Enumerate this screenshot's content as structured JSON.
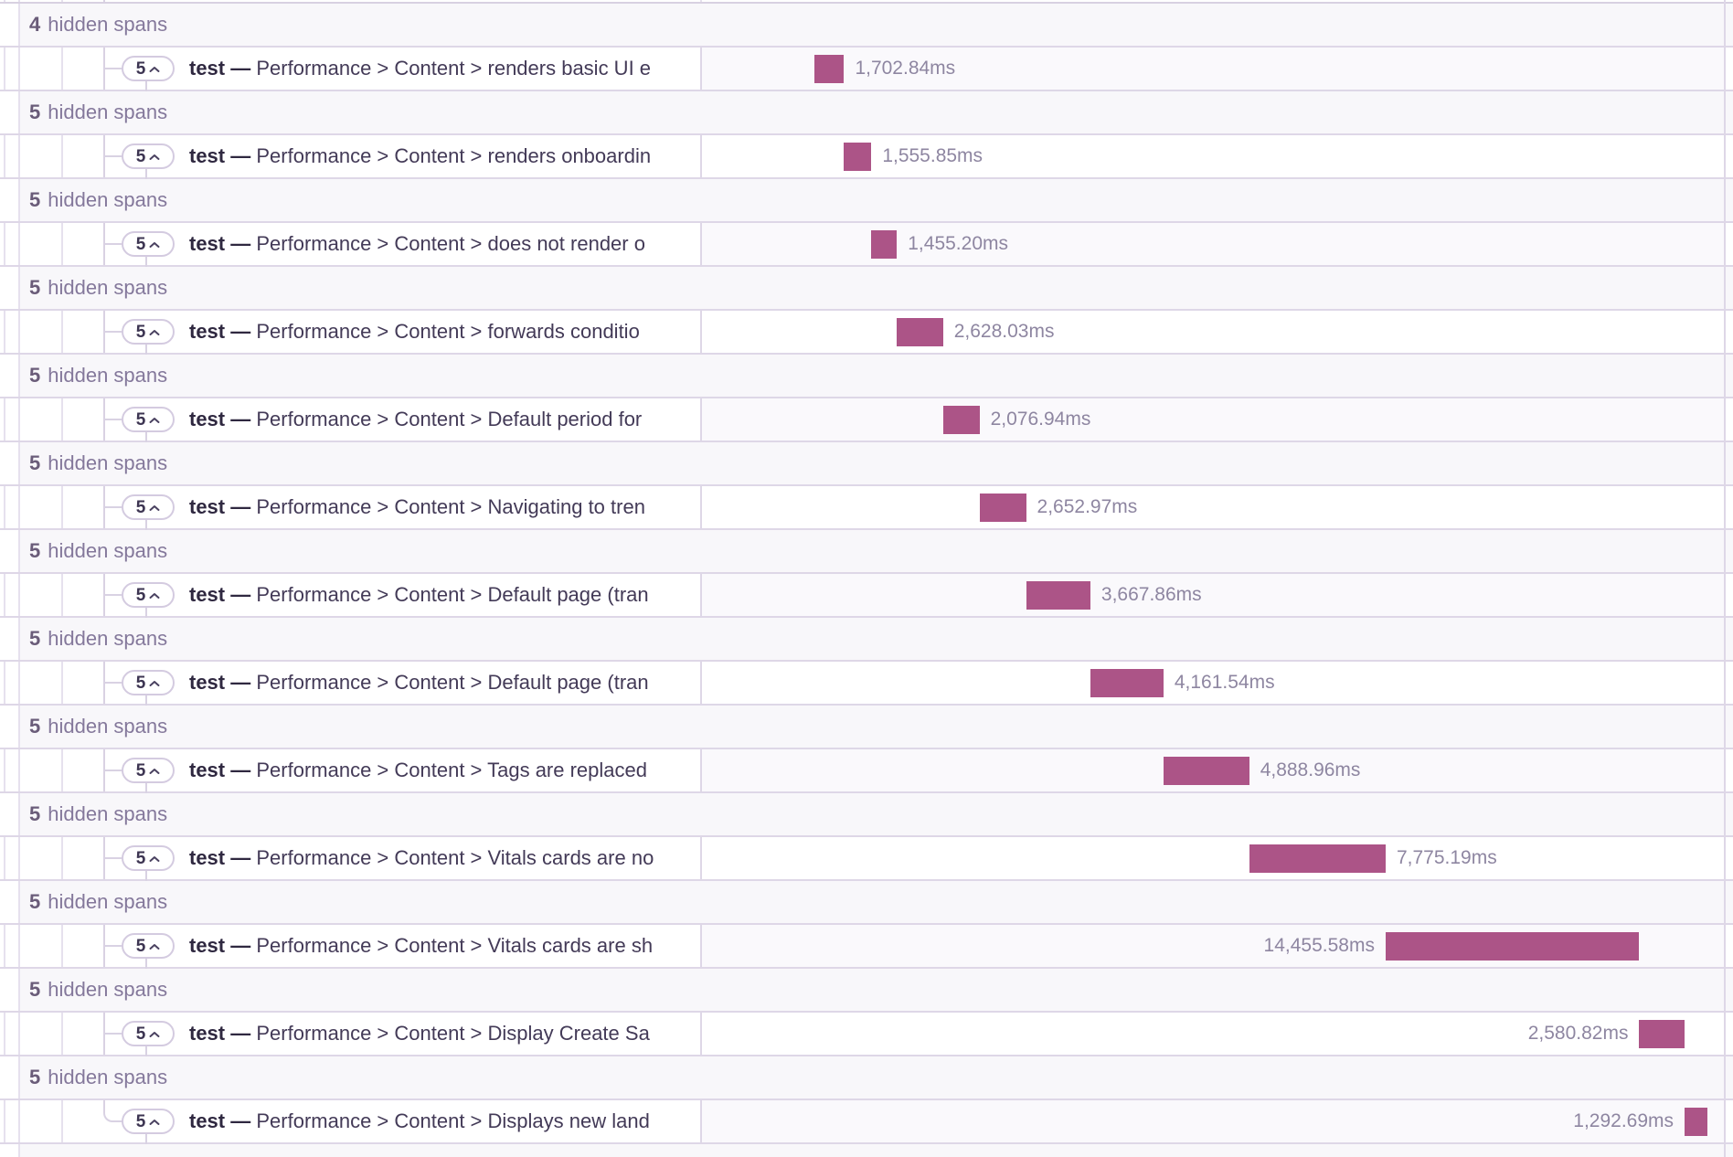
{
  "colors": {
    "bar": "#ac5487",
    "row_border": "#ded7e7",
    "tree_line": "#d9d2e3",
    "hidden_row_bg": "#f8f7fa",
    "alt_waterfall_bg": "#faf9fc"
  },
  "labels": {
    "hidden_suffix": "hidden spans"
  },
  "trace": {
    "timeline": {
      "origin_ms": 6290,
      "total_ms": 58130
    },
    "rows": [
      {
        "type": "hidden",
        "count": "4"
      },
      {
        "type": "span",
        "badge_count": "5",
        "op": "test",
        "separator": "—",
        "description": "Performance > Content > renders basic UI e",
        "duration_label": "1,702.84ms",
        "duration_ms": 1702.84
      },
      {
        "type": "hidden",
        "count": "5"
      },
      {
        "type": "span",
        "badge_count": "5",
        "op": "test",
        "separator": "—",
        "description": "Performance > Content > renders onboardin",
        "duration_label": "1,555.85ms",
        "duration_ms": 1555.85
      },
      {
        "type": "hidden",
        "count": "5"
      },
      {
        "type": "span",
        "badge_count": "5",
        "op": "test",
        "separator": "—",
        "description": "Performance > Content > does not render o",
        "duration_label": "1,455.20ms",
        "duration_ms": 1455.2
      },
      {
        "type": "hidden",
        "count": "5"
      },
      {
        "type": "span",
        "badge_count": "5",
        "op": "test",
        "separator": "—",
        "description": "Performance > Content > forwards conditio",
        "duration_label": "2,628.03ms",
        "duration_ms": 2628.03
      },
      {
        "type": "hidden",
        "count": "5"
      },
      {
        "type": "span",
        "badge_count": "5",
        "op": "test",
        "separator": "—",
        "description": "Performance > Content > Default period for",
        "duration_label": "2,076.94ms",
        "duration_ms": 2076.94
      },
      {
        "type": "hidden",
        "count": "5"
      },
      {
        "type": "span",
        "badge_count": "5",
        "op": "test",
        "separator": "—",
        "description": "Performance > Content > Navigating to tren",
        "duration_label": "2,652.97ms",
        "duration_ms": 2652.97
      },
      {
        "type": "hidden",
        "count": "5"
      },
      {
        "type": "span",
        "badge_count": "5",
        "op": "test",
        "separator": "—",
        "description": "Performance > Content > Default page (tran",
        "duration_label": "3,667.86ms",
        "duration_ms": 3667.86
      },
      {
        "type": "hidden",
        "count": "5"
      },
      {
        "type": "span",
        "badge_count": "5",
        "op": "test",
        "separator": "—",
        "description": "Performance > Content > Default page (tran",
        "duration_label": "4,161.54ms",
        "duration_ms": 4161.54
      },
      {
        "type": "hidden",
        "count": "5"
      },
      {
        "type": "span",
        "badge_count": "5",
        "op": "test",
        "separator": "—",
        "description": "Performance > Content > Tags are replaced",
        "duration_label": "4,888.96ms",
        "duration_ms": 4888.96
      },
      {
        "type": "hidden",
        "count": "5"
      },
      {
        "type": "span",
        "badge_count": "5",
        "op": "test",
        "separator": "—",
        "description": "Performance > Content > Vitals cards are no",
        "duration_label": "7,775.19ms",
        "duration_ms": 7775.19
      },
      {
        "type": "hidden",
        "count": "5"
      },
      {
        "type": "span",
        "badge_count": "5",
        "op": "test",
        "separator": "—",
        "description": "Performance > Content > Vitals cards are sh",
        "duration_label": "14,455.58ms",
        "duration_ms": 14455.58
      },
      {
        "type": "hidden",
        "count": "5"
      },
      {
        "type": "span",
        "badge_count": "5",
        "op": "test",
        "separator": "—",
        "description": "Performance > Content > Display Create Sa",
        "duration_label": "2,580.82ms",
        "duration_ms": 2580.82
      },
      {
        "type": "hidden",
        "count": "5"
      },
      {
        "type": "span",
        "badge_count": "5",
        "op": "test",
        "separator": "—",
        "description": "Performance > Content > Displays new land",
        "duration_label": "1,292.69ms",
        "duration_ms": 1292.69
      }
    ]
  }
}
